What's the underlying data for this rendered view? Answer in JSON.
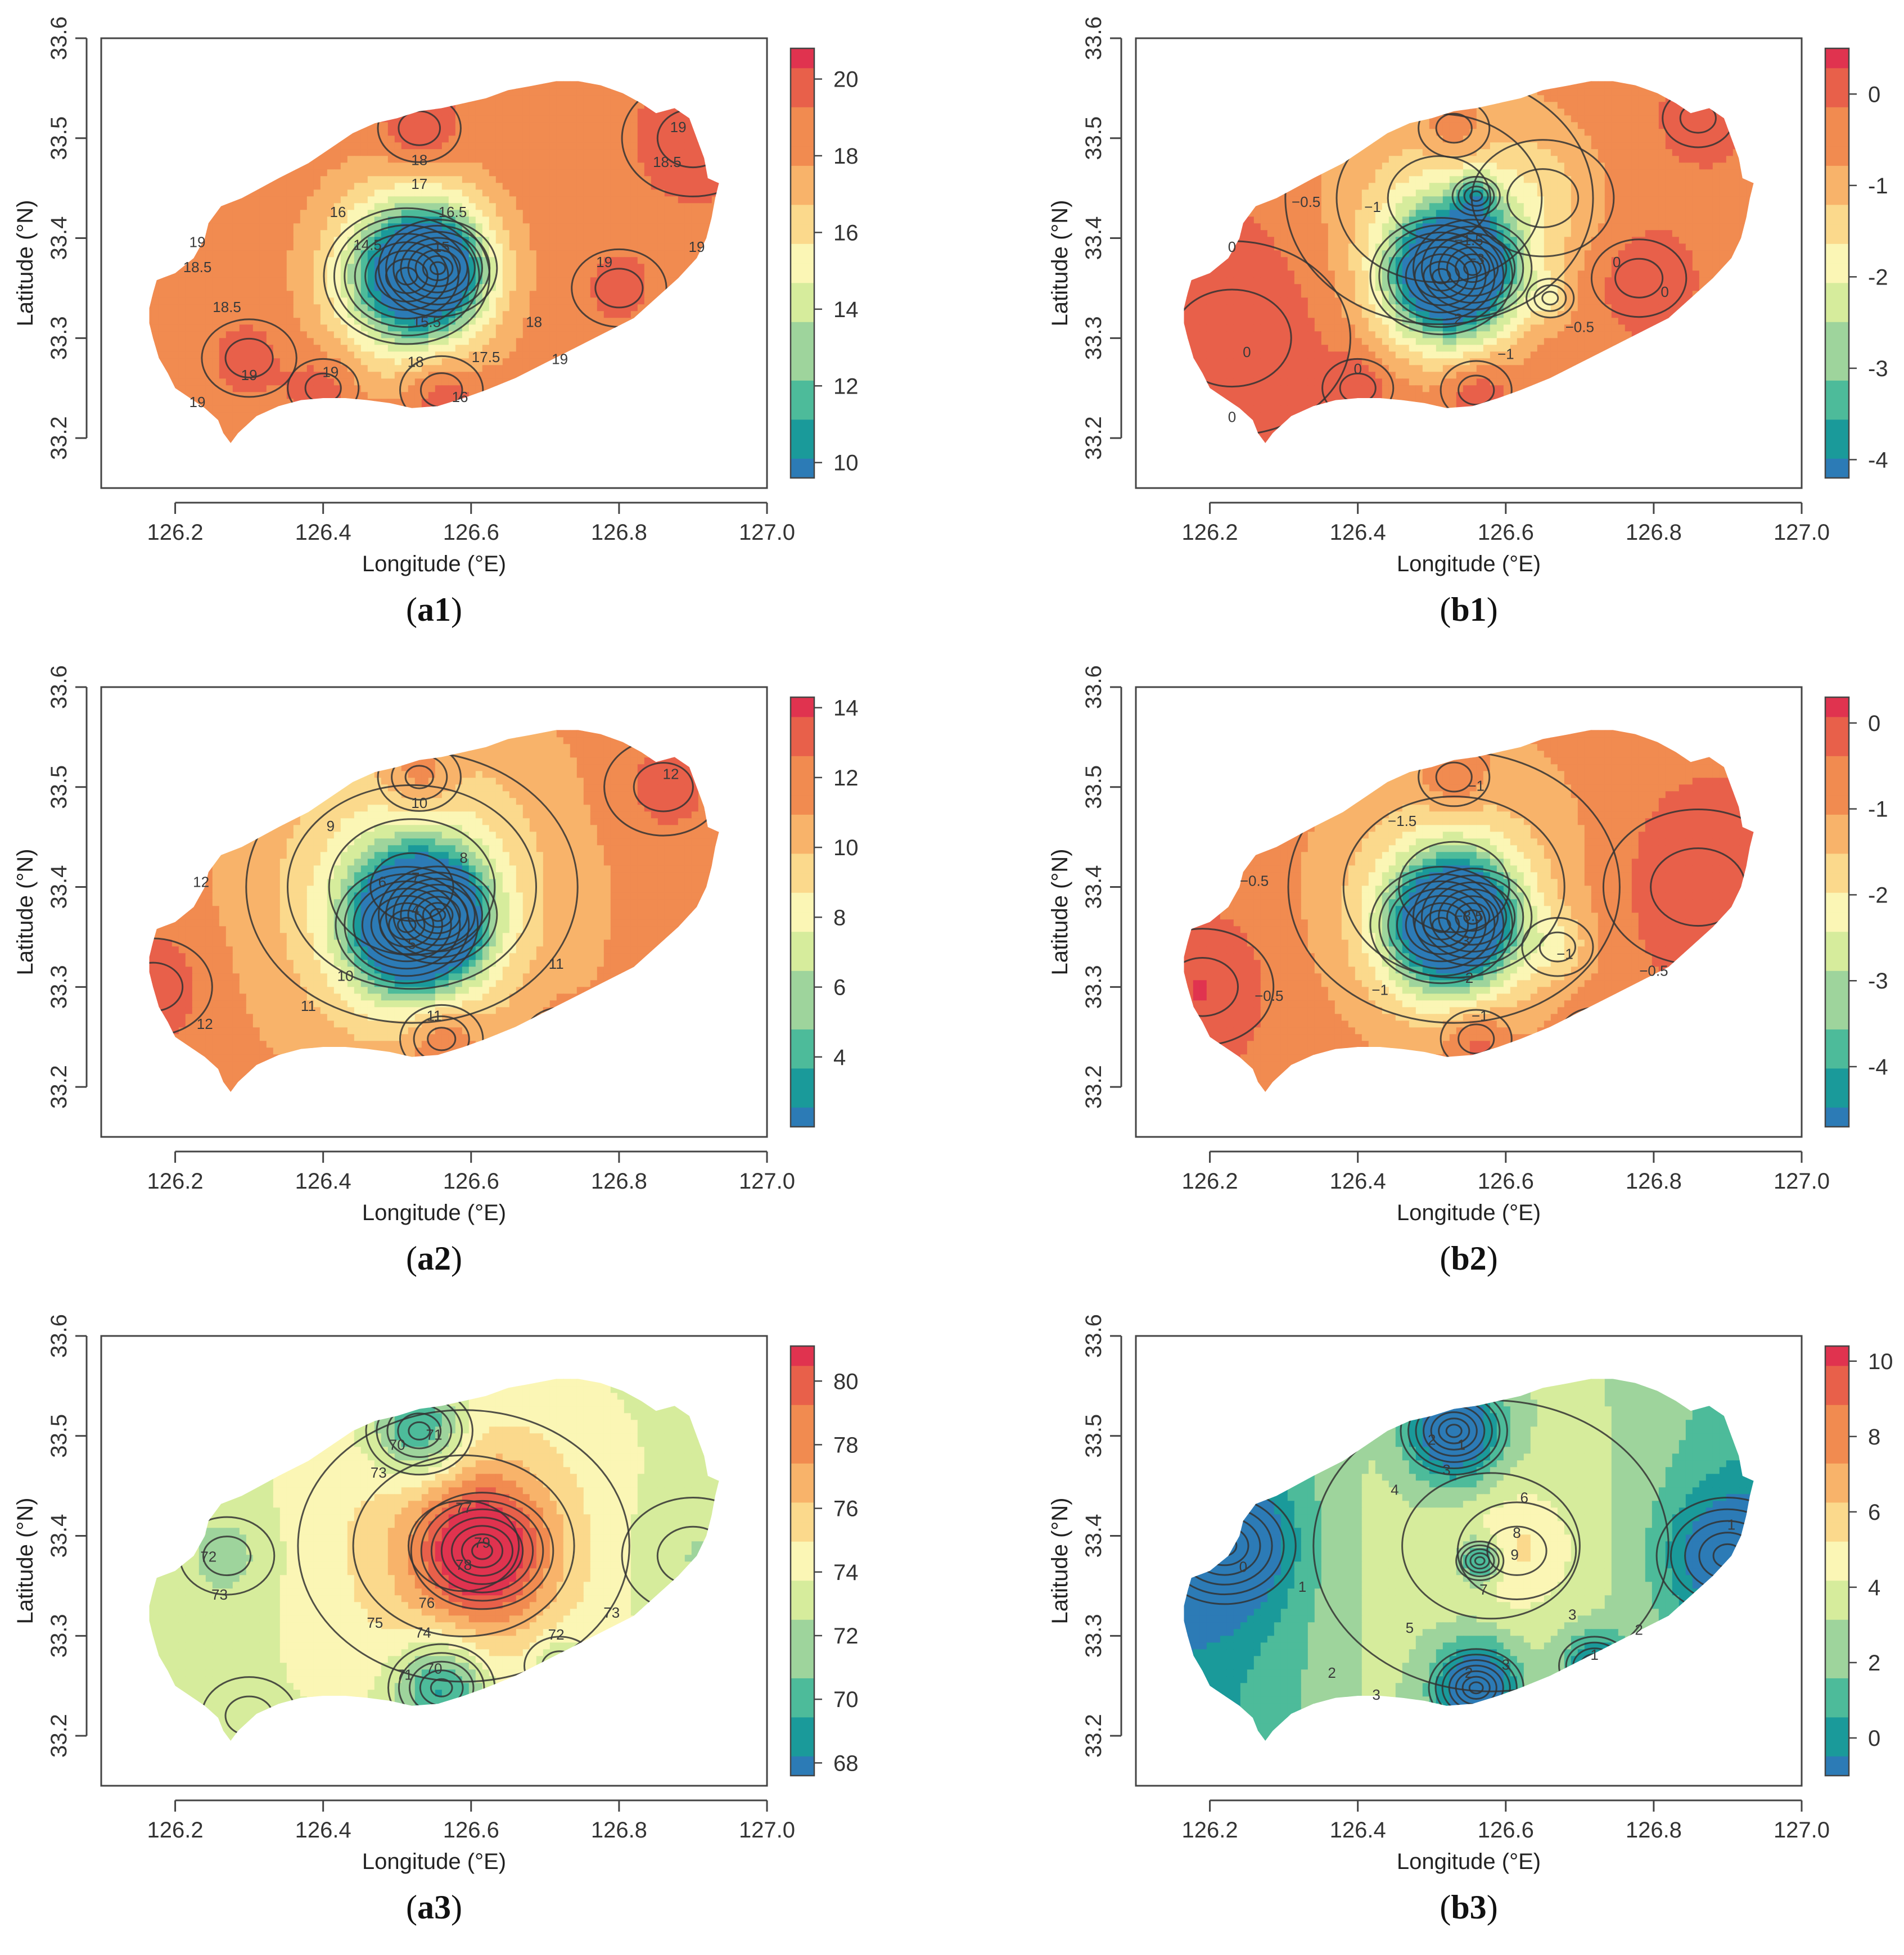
{
  "figure": {
    "x_axis_label": "Longitude (°E)",
    "y_axis_label": "Latitude (°N)",
    "x_ticks": [
      "126.2",
      "126.4",
      "126.6",
      "126.8",
      "127.0"
    ],
    "y_ticks": [
      "33.2",
      "33.3",
      "33.4",
      "33.5",
      "33.6"
    ],
    "x_range": [
      126.1,
      127.0
    ],
    "y_range": [
      33.15,
      33.6
    ]
  },
  "colors": {
    "ramp": [
      "#2c7bb6",
      "#1a9a9a",
      "#4dbb9a",
      "#9ed49c",
      "#d6ec9c",
      "#fbf6b5",
      "#fbd98c",
      "#f8b36a",
      "#f18b50",
      "#e8604a",
      "#e0334f"
    ],
    "axis": "#444444",
    "contour": "#333333"
  },
  "chart_data": [
    {
      "id": "a1",
      "panel_label": "(a1)",
      "type": "heatmap",
      "colorbar_min": 9.6,
      "colorbar_max": 20.8,
      "colorbar_ticks": [
        "10",
        "12",
        "14",
        "16",
        "18",
        "20"
      ],
      "background_value": 18.6,
      "extremes": [
        {
          "lon": 126.513,
          "lat": 33.362,
          "value": 10,
          "spread": 0.07
        },
        {
          "lon": 126.555,
          "lat": 33.37,
          "value": 12.5,
          "spread": 0.05
        },
        {
          "lon": 126.53,
          "lat": 33.51,
          "value": 20.5,
          "spread": 0.035
        },
        {
          "lon": 126.56,
          "lat": 33.248,
          "value": 20.5,
          "spread": 0.035
        },
        {
          "lon": 126.4,
          "lat": 33.25,
          "value": 20,
          "spread": 0.03
        },
        {
          "lon": 126.9,
          "lat": 33.5,
          "value": 19.8,
          "spread": 0.06
        },
        {
          "lon": 126.3,
          "lat": 33.28,
          "value": 19.5,
          "spread": 0.04
        },
        {
          "lon": 126.8,
          "lat": 33.35,
          "value": 19.4,
          "spread": 0.04
        }
      ],
      "contour_labels": [
        {
          "text": "18",
          "lon": 126.53,
          "lat": 33.477
        },
        {
          "text": "17",
          "lon": 126.53,
          "lat": 33.453
        },
        {
          "text": "16",
          "lon": 126.42,
          "lat": 33.425
        },
        {
          "text": "16.5",
          "lon": 126.575,
          "lat": 33.425
        },
        {
          "text": "14.5",
          "lon": 126.46,
          "lat": 33.392
        },
        {
          "text": "15",
          "lon": 126.56,
          "lat": 33.39
        },
        {
          "text": "15.5",
          "lon": 126.54,
          "lat": 33.315
        },
        {
          "text": "17.5",
          "lon": 126.62,
          "lat": 33.28
        },
        {
          "text": "18",
          "lon": 126.525,
          "lat": 33.275
        },
        {
          "text": "18.5",
          "lon": 126.865,
          "lat": 33.475
        },
        {
          "text": "19",
          "lon": 126.23,
          "lat": 33.395
        },
        {
          "text": "18.5",
          "lon": 126.23,
          "lat": 33.37
        },
        {
          "text": "18.5",
          "lon": 126.27,
          "lat": 33.33
        },
        {
          "text": "19",
          "lon": 126.3,
          "lat": 33.262
        },
        {
          "text": "19",
          "lon": 126.23,
          "lat": 33.235
        },
        {
          "text": "19",
          "lon": 126.88,
          "lat": 33.51
        },
        {
          "text": "19",
          "lon": 126.78,
          "lat": 33.375
        },
        {
          "text": "19",
          "lon": 126.905,
          "lat": 33.39
        },
        {
          "text": "18",
          "lon": 126.685,
          "lat": 33.315
        },
        {
          "text": "19",
          "lon": 126.72,
          "lat": 33.278
        },
        {
          "text": "19",
          "lon": 126.41,
          "lat": 33.265
        },
        {
          "text": "16",
          "lon": 126.585,
          "lat": 33.24
        }
      ]
    },
    {
      "id": "b1",
      "panel_label": "(b1)",
      "type": "heatmap",
      "colorbar_min": -4.2,
      "colorbar_max": 0.5,
      "colorbar_ticks": [
        "0",
        "-1",
        "-2",
        "-3",
        "-4"
      ],
      "background_value": -0.25,
      "extremes": [
        {
          "lon": 126.513,
          "lat": 33.362,
          "value": -4,
          "spread": 0.06
        },
        {
          "lon": 126.555,
          "lat": 33.37,
          "value": -2.6,
          "spread": 0.05
        },
        {
          "lon": 126.51,
          "lat": 33.44,
          "value": -1.2,
          "spread": 0.13
        },
        {
          "lon": 126.56,
          "lat": 33.442,
          "value": -1.6,
          "spread": 0.02
        },
        {
          "lon": 126.65,
          "lat": 33.44,
          "value": -0.9,
          "spread": 0.06
        },
        {
          "lon": 126.53,
          "lat": 33.51,
          "value": 0.4,
          "spread": 0.03
        },
        {
          "lon": 126.56,
          "lat": 33.248,
          "value": 0.4,
          "spread": 0.03
        },
        {
          "lon": 126.4,
          "lat": 33.25,
          "value": 0.3,
          "spread": 0.03
        },
        {
          "lon": 126.78,
          "lat": 33.36,
          "value": 0.2,
          "spread": 0.04
        },
        {
          "lon": 126.86,
          "lat": 33.52,
          "value": 0.2,
          "spread": 0.03
        },
        {
          "lon": 126.23,
          "lat": 33.3,
          "value": 0.3,
          "spread": 0.1
        },
        {
          "lon": 126.66,
          "lat": 33.34,
          "value": -1.1,
          "spread": 0.02
        }
      ],
      "contour_labels": [
        {
          "text": "−0.5",
          "lon": 126.33,
          "lat": 33.435
        },
        {
          "text": "−1",
          "lon": 126.42,
          "lat": 33.43
        },
        {
          "text": "−1.5",
          "lon": 126.55,
          "lat": 33.397
        },
        {
          "text": "−3",
          "lon": 126.56,
          "lat": 33.378
        },
        {
          "text": "−2",
          "lon": 126.53,
          "lat": 33.318
        },
        {
          "text": "−1",
          "lon": 126.6,
          "lat": 33.283
        },
        {
          "text": "−0.5",
          "lon": 126.7,
          "lat": 33.31
        },
        {
          "text": "0",
          "lon": 126.23,
          "lat": 33.39
        },
        {
          "text": "0",
          "lon": 126.25,
          "lat": 33.285
        },
        {
          "text": "0",
          "lon": 126.23,
          "lat": 33.22
        },
        {
          "text": "0",
          "lon": 126.4,
          "lat": 33.268
        },
        {
          "text": "0",
          "lon": 126.75,
          "lat": 33.375
        },
        {
          "text": "0",
          "lon": 126.815,
          "lat": 33.345
        }
      ]
    },
    {
      "id": "a2",
      "panel_label": "(a2)",
      "type": "heatmap",
      "colorbar_min": 2,
      "colorbar_max": 14.3,
      "colorbar_ticks": [
        "4",
        "6",
        "8",
        "10",
        "12",
        "14"
      ],
      "background_value": 11.8,
      "extremes": [
        {
          "lon": 126.513,
          "lat": 33.362,
          "value": 2.5,
          "spread": 0.06
        },
        {
          "lon": 126.555,
          "lat": 33.372,
          "value": 4.5,
          "spread": 0.05
        },
        {
          "lon": 126.52,
          "lat": 33.4,
          "value": 8,
          "spread": 0.14
        },
        {
          "lon": 126.53,
          "lat": 33.51,
          "value": 14,
          "spread": 0.035
        },
        {
          "lon": 126.56,
          "lat": 33.248,
          "value": 14,
          "spread": 0.035
        },
        {
          "lon": 126.17,
          "lat": 33.3,
          "value": 13.5,
          "spread": 0.05
        },
        {
          "lon": 126.72,
          "lat": 33.25,
          "value": 13,
          "spread": 0.03
        },
        {
          "lon": 126.86,
          "lat": 33.5,
          "value": 13,
          "spread": 0.05
        }
      ],
      "contour_labels": [
        {
          "text": "10",
          "lon": 126.53,
          "lat": 33.483
        },
        {
          "text": "9",
          "lon": 126.41,
          "lat": 33.46
        },
        {
          "text": "8",
          "lon": 126.59,
          "lat": 33.428
        },
        {
          "text": "7",
          "lon": 126.525,
          "lat": 33.408
        },
        {
          "text": "6",
          "lon": 126.48,
          "lat": 33.404
        },
        {
          "text": "4",
          "lon": 126.525,
          "lat": 33.376
        },
        {
          "text": "5",
          "lon": 126.52,
          "lat": 33.342
        },
        {
          "text": "10",
          "lon": 126.43,
          "lat": 33.31
        },
        {
          "text": "11",
          "lon": 126.38,
          "lat": 33.28
        },
        {
          "text": "11",
          "lon": 126.55,
          "lat": 33.27
        },
        {
          "text": "11",
          "lon": 126.715,
          "lat": 33.322
        },
        {
          "text": "12",
          "lon": 126.235,
          "lat": 33.404
        },
        {
          "text": "12",
          "lon": 126.24,
          "lat": 33.262
        },
        {
          "text": "12",
          "lon": 126.87,
          "lat": 33.512
        }
      ]
    },
    {
      "id": "b2",
      "panel_label": "(b2)",
      "type": "heatmap",
      "colorbar_min": -4.7,
      "colorbar_max": 0.3,
      "colorbar_ticks": [
        "0",
        "-1",
        "-2",
        "-3",
        "-4"
      ],
      "background_value": -0.6,
      "extremes": [
        {
          "lon": 126.513,
          "lat": 33.362,
          "value": -4.4,
          "spread": 0.06
        },
        {
          "lon": 126.555,
          "lat": 33.37,
          "value": -3,
          "spread": 0.05
        },
        {
          "lon": 126.53,
          "lat": 33.4,
          "value": -1.6,
          "spread": 0.14
        },
        {
          "lon": 126.53,
          "lat": 33.51,
          "value": 0.2,
          "spread": 0.03
        },
        {
          "lon": 126.56,
          "lat": 33.248,
          "value": 0.2,
          "spread": 0.03
        },
        {
          "lon": 126.86,
          "lat": 33.4,
          "value": 0.1,
          "spread": 0.08
        },
        {
          "lon": 126.19,
          "lat": 33.3,
          "value": 0.1,
          "spread": 0.06
        },
        {
          "lon": 126.72,
          "lat": 33.25,
          "value": 0,
          "spread": 0.03
        },
        {
          "lon": 126.67,
          "lat": 33.34,
          "value": -1.4,
          "spread": 0.03
        }
      ],
      "contour_labels": [
        {
          "text": "−1",
          "lon": 126.56,
          "lat": 33.5
        },
        {
          "text": "−1.5",
          "lon": 126.46,
          "lat": 33.465
        },
        {
          "text": "−0.5",
          "lon": 126.26,
          "lat": 33.405
        },
        {
          "text": "−3.5",
          "lon": 126.55,
          "lat": 33.37
        },
        {
          "text": "−3",
          "lon": 126.54,
          "lat": 33.345
        },
        {
          "text": "−2",
          "lon": 126.545,
          "lat": 33.308
        },
        {
          "text": "−1",
          "lon": 126.43,
          "lat": 33.296
        },
        {
          "text": "−1",
          "lon": 126.68,
          "lat": 33.332
        },
        {
          "text": "−0.5",
          "lon": 126.28,
          "lat": 33.29
        },
        {
          "text": "−0.5",
          "lon": 126.8,
          "lat": 33.315
        },
        {
          "text": "−1",
          "lon": 126.565,
          "lat": 33.27
        }
      ]
    },
    {
      "id": "a3",
      "panel_label": "(a3)",
      "type": "heatmap",
      "colorbar_min": 67.6,
      "colorbar_max": 81.1,
      "colorbar_ticks": [
        "68",
        "70",
        "72",
        "74",
        "76",
        "78",
        "80"
      ],
      "background_value": 73.2,
      "extremes": [
        {
          "lon": 126.615,
          "lat": 33.385,
          "value": 80,
          "spread": 0.06
        },
        {
          "lon": 126.59,
          "lat": 33.39,
          "value": 76.5,
          "spread": 0.14
        },
        {
          "lon": 126.53,
          "lat": 33.505,
          "value": 68,
          "spread": 0.045
        },
        {
          "lon": 126.56,
          "lat": 33.248,
          "value": 68,
          "spread": 0.045
        },
        {
          "lon": 126.27,
          "lat": 33.38,
          "value": 71.5,
          "spread": 0.04
        },
        {
          "lon": 126.9,
          "lat": 33.38,
          "value": 72,
          "spread": 0.06
        },
        {
          "lon": 126.72,
          "lat": 33.27,
          "value": 71,
          "spread": 0.03
        },
        {
          "lon": 126.3,
          "lat": 33.22,
          "value": 73.5,
          "spread": 0.04
        }
      ],
      "contour_labels": [
        {
          "text": "70",
          "lon": 126.5,
          "lat": 33.49
        },
        {
          "text": "71",
          "lon": 126.55,
          "lat": 33.5
        },
        {
          "text": "73",
          "lon": 126.475,
          "lat": 33.462
        },
        {
          "text": "77",
          "lon": 126.59,
          "lat": 33.427
        },
        {
          "text": "79",
          "lon": 126.615,
          "lat": 33.392
        },
        {
          "text": "78",
          "lon": 126.59,
          "lat": 33.37
        },
        {
          "text": "76",
          "lon": 126.54,
          "lat": 33.332
        },
        {
          "text": "75",
          "lon": 126.47,
          "lat": 33.312
        },
        {
          "text": "74",
          "lon": 126.535,
          "lat": 33.302
        },
        {
          "text": "72",
          "lon": 126.245,
          "lat": 33.378
        },
        {
          "text": "73",
          "lon": 126.26,
          "lat": 33.34
        },
        {
          "text": "73",
          "lon": 126.79,
          "lat": 33.322
        },
        {
          "text": "72",
          "lon": 126.715,
          "lat": 33.3
        },
        {
          "text": "71",
          "lon": 126.51,
          "lat": 33.26
        },
        {
          "text": "70",
          "lon": 126.55,
          "lat": 33.266
        }
      ]
    },
    {
      "id": "b3",
      "panel_label": "(b3)",
      "type": "heatmap",
      "colorbar_min": -1,
      "colorbar_max": 10.4,
      "colorbar_ticks": [
        "0",
        "2",
        "4",
        "6",
        "8",
        "10"
      ],
      "background_value": 3,
      "gradient": {
        "w": [
          -3.2,
          -0.5
        ],
        "e": [
          -1.8,
          0.55
        ]
      },
      "extremes": [
        {
          "lon": 126.615,
          "lat": 33.385,
          "value": 5,
          "spread": 0.05
        },
        {
          "lon": 126.58,
          "lat": 33.39,
          "value": 3.5,
          "spread": 0.15
        },
        {
          "lon": 126.53,
          "lat": 33.505,
          "value": -3,
          "spread": 0.045
        },
        {
          "lon": 126.56,
          "lat": 33.248,
          "value": -3,
          "spread": 0.04
        },
        {
          "lon": 126.22,
          "lat": 33.39,
          "value": -1.5,
          "spread": 0.06
        },
        {
          "lon": 126.9,
          "lat": 33.38,
          "value": -0.8,
          "spread": 0.06
        },
        {
          "lon": 126.72,
          "lat": 33.27,
          "value": -1,
          "spread": 0.03
        },
        {
          "lon": 126.565,
          "lat": 33.375,
          "value": -1,
          "spread": 0.02
        }
      ],
      "contour_labels": [
        {
          "text": "2",
          "lon": 126.5,
          "lat": 33.495
        },
        {
          "text": "1",
          "lon": 126.54,
          "lat": 33.49
        },
        {
          "text": "3",
          "lon": 126.52,
          "lat": 33.465
        },
        {
          "text": "4",
          "lon": 126.45,
          "lat": 33.445
        },
        {
          "text": "6",
          "lon": 126.625,
          "lat": 33.437
        },
        {
          "text": "8",
          "lon": 126.615,
          "lat": 33.402
        },
        {
          "text": "9",
          "lon": 126.612,
          "lat": 33.38
        },
        {
          "text": "7",
          "lon": 126.57,
          "lat": 33.345
        },
        {
          "text": "5",
          "lon": 126.47,
          "lat": 33.307
        },
        {
          "text": "0",
          "lon": 126.245,
          "lat": 33.368
        },
        {
          "text": "1",
          "lon": 126.325,
          "lat": 33.348
        },
        {
          "text": "1",
          "lon": 126.905,
          "lat": 33.41
        },
        {
          "text": "2",
          "lon": 126.365,
          "lat": 33.262
        },
        {
          "text": "3",
          "lon": 126.425,
          "lat": 33.24
        },
        {
          "text": "3",
          "lon": 126.69,
          "lat": 33.32
        },
        {
          "text": "2",
          "lon": 126.78,
          "lat": 33.305
        },
        {
          "text": "1",
          "lon": 126.72,
          "lat": 33.28
        },
        {
          "text": "3",
          "lon": 126.6,
          "lat": 33.27
        },
        {
          "text": "2",
          "lon": 126.55,
          "lat": 33.262
        }
      ]
    }
  ]
}
